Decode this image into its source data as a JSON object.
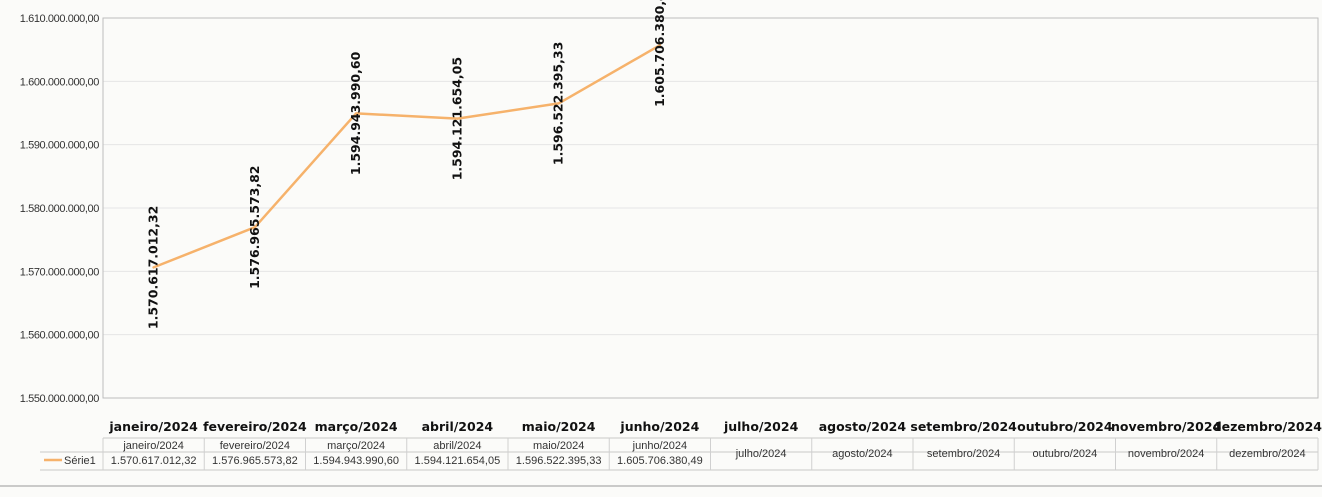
{
  "chart_data": {
    "type": "line",
    "title": "",
    "xlabel": "",
    "ylabel": "",
    "categories": [
      "janeiro/2024",
      "fevereiro/2024",
      "março/2024",
      "abril/2024",
      "maio/2024",
      "junho/2024",
      "julho/2024",
      "agosto/2024",
      "setembro/2024",
      "outubro/2024",
      "novembro/2024",
      "dezembro/2024"
    ],
    "series": [
      {
        "name": "Série1",
        "color": "#f6b26b",
        "values": [
          1570617012.32,
          1576965573.82,
          1594943990.6,
          1594121654.05,
          1596522395.33,
          1605706380.49,
          null,
          null,
          null,
          null,
          null,
          null
        ],
        "labels": [
          "1.570.617.012,32",
          "1.576.965.573,82",
          "1.594.943.990,60",
          "1.594.121.654,05",
          "1.596.522.395,33",
          "1.605.706.380,49"
        ]
      }
    ],
    "ylim": [
      1550000000,
      1610000000
    ],
    "ytick_labels": [
      "1.550.000.000,00",
      "1.560.000.000,00",
      "1.570.000.000,00",
      "1.580.000.000,00",
      "1.590.000.000,00",
      "1.600.000.000,00",
      "1.610.000.000,00"
    ],
    "grid": true,
    "data_table": true
  }
}
